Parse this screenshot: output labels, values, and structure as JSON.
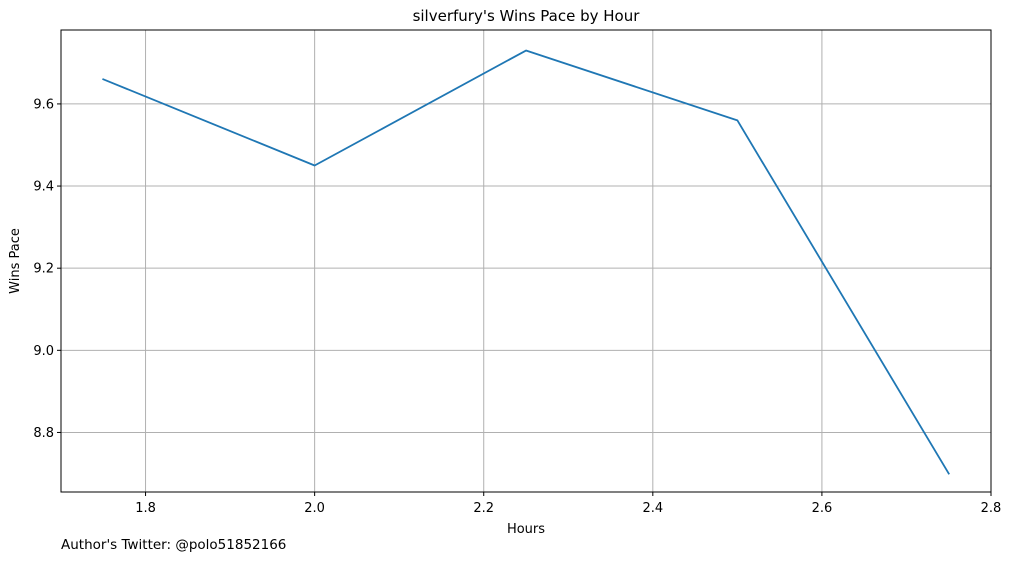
{
  "chart_data": {
    "type": "line",
    "title": "silverfury's Wins Pace by Hour",
    "xlabel": "Hours",
    "ylabel": "Wins Pace",
    "x": [
      1.75,
      2.0,
      2.25,
      2.5,
      2.75
    ],
    "series": [
      {
        "values": [
          9.66,
          9.45,
          9.73,
          9.56,
          8.7
        ],
        "color": "#1f77b4"
      }
    ],
    "xlim": [
      1.7,
      2.8
    ],
    "ylim": [
      8.655,
      9.78
    ],
    "xticks": [
      "1.8",
      "2.0",
      "2.2",
      "2.4",
      "2.6",
      "2.8"
    ],
    "yticks": [
      "8.8",
      "9.0",
      "9.2",
      "9.4",
      "9.6"
    ],
    "grid": true
  },
  "footer": {
    "text": "Author's Twitter: @polo51852166"
  },
  "colors": {
    "line": "#1f77b4",
    "grid": "#b0b0b0",
    "axes": "#000000"
  }
}
